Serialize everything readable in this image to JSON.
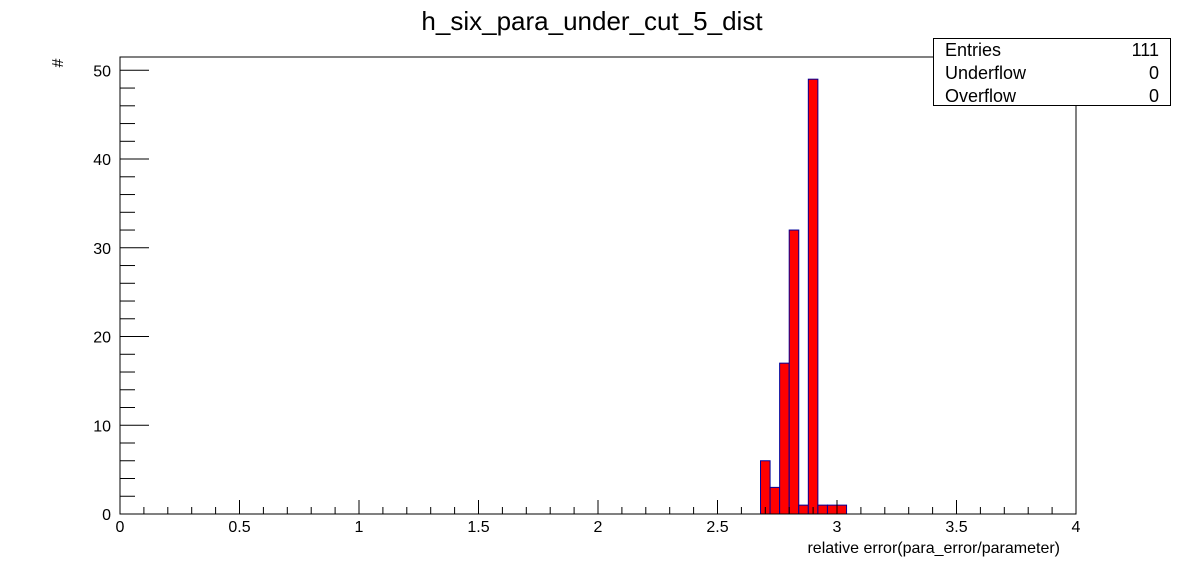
{
  "chart_data": {
    "type": "bar",
    "title": "h_six_para_under_cut_5_dist",
    "xlabel": "relative error(para_error/parameter)",
    "ylabel": "#",
    "xlim": [
      0,
      4
    ],
    "ylim": [
      0,
      51.5
    ],
    "x_ticks": [
      "0",
      "0.5",
      "1",
      "1.5",
      "2",
      "2.5",
      "3",
      "3.5",
      "4"
    ],
    "y_ticks": [
      "0",
      "10",
      "20",
      "30",
      "40",
      "50"
    ],
    "bin_width": 0.04,
    "bins": [
      {
        "x0": 2.68,
        "x1": 2.72,
        "value": 6
      },
      {
        "x0": 2.72,
        "x1": 2.76,
        "value": 3
      },
      {
        "x0": 2.76,
        "x1": 2.8,
        "value": 17
      },
      {
        "x0": 2.8,
        "x1": 2.84,
        "value": 32
      },
      {
        "x0": 2.84,
        "x1": 2.88,
        "value": 1
      },
      {
        "x0": 2.88,
        "x1": 2.92,
        "value": 49
      },
      {
        "x0": 2.92,
        "x1": 2.96,
        "value": 1
      },
      {
        "x0": 2.96,
        "x1": 3.0,
        "value": 1
      },
      {
        "x0": 3.0,
        "x1": 3.04,
        "value": 1
      }
    ],
    "fill_color": "#ff0000",
    "line_color": "#000099",
    "grid": false,
    "legend": "none"
  },
  "stats": {
    "rows": [
      {
        "label": "Entries",
        "value": "111"
      },
      {
        "label": "Underflow",
        "value": "0"
      },
      {
        "label": "Overflow",
        "value": "0"
      }
    ]
  }
}
